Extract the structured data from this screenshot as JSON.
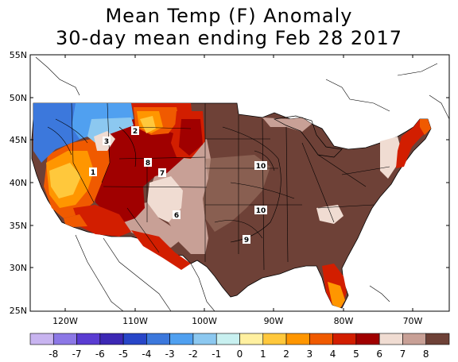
{
  "title_line1": "Mean Temp (F) Anomaly",
  "title_line2": "30-day mean ending Feb 28 2017",
  "lat_ticks": [
    "55N",
    "50N",
    "45N",
    "40N",
    "35N",
    "30N",
    "25N"
  ],
  "lon_ticks": [
    "120W",
    "110W",
    "100W",
    "90W",
    "80W",
    "70W"
  ],
  "contour_labels": [
    "2",
    "3",
    "1",
    "8",
    "7",
    "10",
    "6",
    "10",
    "9"
  ],
  "colorbar": {
    "labels": [
      "-8",
      "-7",
      "-6",
      "-5",
      "-4",
      "-3",
      "-2",
      "-1",
      "0",
      "1",
      "2",
      "3",
      "4",
      "5",
      "6",
      "7",
      "8"
    ],
    "colors": [
      "#c8b4f0",
      "#8c78e6",
      "#5a3cd2",
      "#3c28b4",
      "#2846c8",
      "#3c78dc",
      "#50a0f0",
      "#8cc8f0",
      "#c8f0f0",
      "#fff0a0",
      "#ffc83c",
      "#ff9600",
      "#f05a00",
      "#d21e00",
      "#a00000",
      "#f0dcd2",
      "#c8a096",
      "#6e4137"
    ]
  },
  "palette": {
    "land_brown": "#6e4137",
    "mid_brown": "#a07868",
    "light_brown": "#c8a096",
    "pale": "#f0dcd2",
    "dark_red": "#a00000",
    "red": "#d21e00",
    "orange_red": "#f05a00",
    "orange": "#ff9600",
    "yellow_orange": "#ffc83c",
    "blue": "#3c78dc",
    "light_blue": "#50a0f0",
    "pale_blue": "#8cc8f0"
  }
}
